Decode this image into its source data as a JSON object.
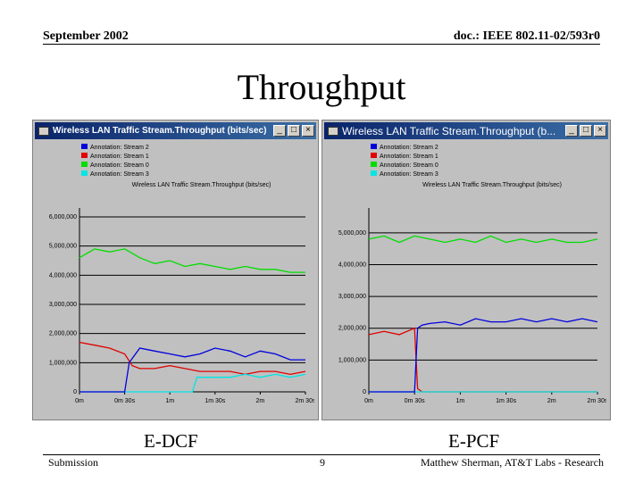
{
  "header": {
    "date": "September 2002",
    "doc_id": "doc.: IEEE 802.11-02/593r0"
  },
  "slide_title": "Throughput",
  "captions": {
    "left": "E-DCF",
    "right": "E-PCF"
  },
  "footer": {
    "left": "Submission",
    "page": "9",
    "right": "Matthew Sherman, AT&T Labs - Research"
  },
  "windows": [
    {
      "title": "Wireless LAN Traffic Stream.Throughput (bits/sec)",
      "controls": [
        "_",
        "□",
        "×"
      ]
    },
    {
      "title": "Wireless LAN Traffic Stream.Throughput (b...",
      "controls": [
        "_",
        "□",
        "×"
      ]
    }
  ],
  "colors": {
    "stream2": "#0000dd",
    "stream1": "#e00000",
    "stream0": "#00dd00",
    "stream3": "#00e5e5"
  },
  "chart_data": [
    {
      "type": "line",
      "title": "Wireless LAN Traffic Stream.Throughput (bits/sec)",
      "x_ticks": [
        "0m",
        "0m 30s",
        "1m",
        "1m 30s",
        "2m",
        "2m 30s"
      ],
      "y_ticks": [
        "0",
        "1,000,000",
        "2,000,000",
        "3,000,000",
        "4,000,000",
        "5,000,000",
        "6,000,000"
      ],
      "xlim": [
        0,
        150
      ],
      "ylim": [
        0,
        6000000
      ],
      "grid": true,
      "legend_position": "top-left",
      "series": [
        {
          "name": "Annotation: Stream 2",
          "color": "#0000dd",
          "x": [
            0,
            30,
            33,
            40,
            50,
            60,
            70,
            80,
            90,
            100,
            110,
            120,
            130,
            140,
            150
          ],
          "y": [
            0,
            0,
            1000000,
            1500000,
            1400000,
            1300000,
            1200000,
            1300000,
            1500000,
            1400000,
            1200000,
            1400000,
            1300000,
            1100000,
            1100000
          ]
        },
        {
          "name": "Annotation: Stream 1",
          "color": "#e00000",
          "x": [
            0,
            10,
            20,
            30,
            35,
            40,
            50,
            60,
            70,
            80,
            90,
            100,
            110,
            120,
            130,
            140,
            150
          ],
          "y": [
            1700000,
            1600000,
            1500000,
            1300000,
            900000,
            800000,
            800000,
            900000,
            800000,
            700000,
            700000,
            700000,
            600000,
            700000,
            700000,
            600000,
            700000
          ]
        },
        {
          "name": "Annotation: Stream 0",
          "color": "#00dd00",
          "x": [
            0,
            10,
            20,
            30,
            40,
            50,
            60,
            70,
            80,
            90,
            100,
            110,
            120,
            130,
            140,
            150
          ],
          "y": [
            4600000,
            4900000,
            4800000,
            4900000,
            4600000,
            4400000,
            4500000,
            4300000,
            4400000,
            4300000,
            4200000,
            4300000,
            4200000,
            4200000,
            4100000,
            4100000
          ]
        },
        {
          "name": "Annotation: Stream 3",
          "color": "#00e5e5",
          "x": [
            0,
            30,
            32,
            75,
            78,
            90,
            100,
            110,
            120,
            130,
            140,
            150
          ],
          "y": [
            0,
            0,
            0,
            0,
            500000,
            500000,
            500000,
            600000,
            500000,
            600000,
            500000,
            600000
          ]
        }
      ]
    },
    {
      "type": "line",
      "title": "Wireless LAN Traffic Stream.Throughput (bits/sec)",
      "x_ticks": [
        "0m",
        "0m 30s",
        "1m",
        "1m 30s",
        "2m",
        "2m 30s"
      ],
      "y_ticks": [
        "0",
        "1,000,000",
        "2,000,000",
        "3,000,000",
        "4,000,000",
        "5,000,000"
      ],
      "xlim": [
        0,
        150
      ],
      "ylim": [
        0,
        5500000
      ],
      "grid": true,
      "legend_position": "top-left",
      "series": [
        {
          "name": "Annotation: Stream 2",
          "color": "#0000dd",
          "x": [
            0,
            30,
            32,
            35,
            40,
            50,
            60,
            70,
            80,
            90,
            100,
            110,
            120,
            130,
            140,
            150
          ],
          "y": [
            0,
            0,
            2000000,
            2100000,
            2150000,
            2200000,
            2100000,
            2300000,
            2200000,
            2200000,
            2300000,
            2200000,
            2300000,
            2200000,
            2300000,
            2200000
          ]
        },
        {
          "name": "Annotation: Stream 1",
          "color": "#e00000",
          "x": [
            0,
            10,
            20,
            30,
            32,
            35,
            150
          ],
          "y": [
            1800000,
            1900000,
            1800000,
            2000000,
            100000,
            0,
            0
          ]
        },
        {
          "name": "Annotation: Stream 0",
          "color": "#00dd00",
          "x": [
            0,
            10,
            20,
            30,
            40,
            50,
            60,
            70,
            80,
            90,
            100,
            110,
            120,
            130,
            140,
            150
          ],
          "y": [
            4800000,
            4900000,
            4700000,
            4900000,
            4800000,
            4700000,
            4800000,
            4700000,
            4900000,
            4700000,
            4800000,
            4700000,
            4800000,
            4700000,
            4700000,
            4800000
          ]
        },
        {
          "name": "Annotation: Stream 3",
          "color": "#00e5e5",
          "x": [
            0,
            150
          ],
          "y": [
            0,
            0
          ]
        }
      ]
    }
  ]
}
